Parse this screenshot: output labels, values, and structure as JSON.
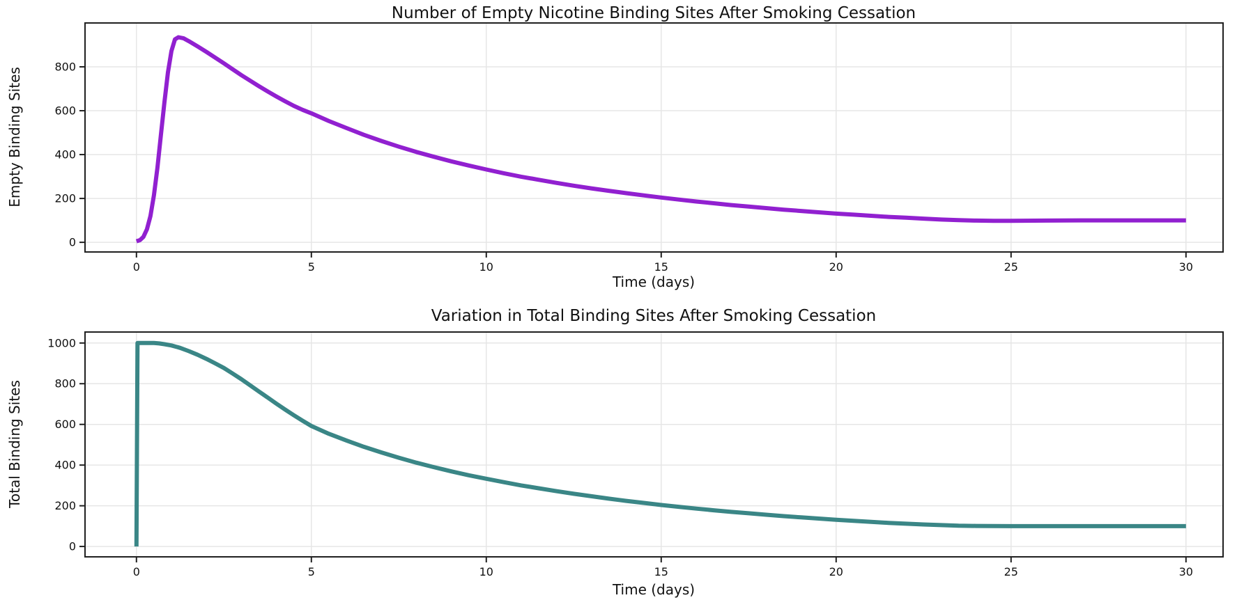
{
  "figure": {
    "background": "#ffffff",
    "grid_color": "#e6e6e6",
    "spine_color": "#1f1f1f",
    "text_color": "#111111"
  },
  "chart_data": [
    {
      "type": "line",
      "title": "Number of Empty Nicotine Binding Sites After Smoking Cessation",
      "xlabel": "Time (days)",
      "ylabel": "Empty Binding Sites",
      "xlim": [
        -1.47,
        31.06
      ],
      "ylim": [
        -44,
        1000
      ],
      "xticks": [
        0,
        5,
        10,
        15,
        20,
        25,
        30
      ],
      "yticks": [
        0,
        200,
        400,
        600,
        800
      ],
      "grid": true,
      "legend": "none",
      "line_color": "#9120d0",
      "line_width": 6,
      "series": [
        {
          "name": "Empty Binding Sites",
          "points": [
            [
              0,
              5
            ],
            [
              0.1,
              10
            ],
            [
              0.2,
              25
            ],
            [
              0.3,
              60
            ],
            [
              0.4,
              120
            ],
            [
              0.5,
              215
            ],
            [
              0.6,
              340
            ],
            [
              0.7,
              490
            ],
            [
              0.8,
              640
            ],
            [
              0.9,
              775
            ],
            [
              1.0,
              872
            ],
            [
              1.1,
              925
            ],
            [
              1.2,
              935
            ],
            [
              1.35,
              930
            ],
            [
              1.5,
              917
            ],
            [
              1.75,
              893
            ],
            [
              2,
              868
            ],
            [
              2.25,
              842
            ],
            [
              2.5,
              816
            ],
            [
              2.75,
              789
            ],
            [
              3,
              762
            ],
            [
              3.25,
              737
            ],
            [
              3.5,
              712
            ],
            [
              3.75,
              688
            ],
            [
              4,
              665
            ],
            [
              4.25,
              643
            ],
            [
              4.5,
              622
            ],
            [
              4.75,
              604
            ],
            [
              5,
              588
            ],
            [
              5.5,
              553
            ],
            [
              6,
              521
            ],
            [
              6.5,
              490
            ],
            [
              7,
              462
            ],
            [
              7.5,
              436
            ],
            [
              8,
              412
            ],
            [
              8.5,
              390
            ],
            [
              9,
              369
            ],
            [
              9.5,
              350
            ],
            [
              10,
              332
            ],
            [
              10.5,
              315
            ],
            [
              11,
              299
            ],
            [
              11.5,
              285
            ],
            [
              12,
              271
            ],
            [
              12.5,
              258
            ],
            [
              13,
              246
            ],
            [
              13.5,
              235
            ],
            [
              14,
              224
            ],
            [
              14.5,
              214
            ],
            [
              15,
              204
            ],
            [
              15.5,
              195
            ],
            [
              16,
              186
            ],
            [
              16.5,
              178
            ],
            [
              17,
              170
            ],
            [
              17.5,
              163
            ],
            [
              18,
              156
            ],
            [
              18.5,
              149
            ],
            [
              19,
              143
            ],
            [
              19.5,
              137
            ],
            [
              20,
              131
            ],
            [
              20.5,
              126
            ],
            [
              21,
              121
            ],
            [
              21.5,
              116
            ],
            [
              22,
              112
            ],
            [
              22.5,
              108
            ],
            [
              23,
              104
            ],
            [
              23.5,
              101
            ],
            [
              24,
              99
            ],
            [
              24.5,
              98
            ],
            [
              25,
              98
            ],
            [
              26,
              99
            ],
            [
              27,
              100
            ],
            [
              28,
              100
            ],
            [
              29,
              100
            ],
            [
              30,
              100
            ]
          ]
        }
      ]
    },
    {
      "type": "line",
      "title": "Variation in Total Binding Sites After Smoking Cessation",
      "xlabel": "Time (days)",
      "ylabel": "Total Binding Sites",
      "xlim": [
        -1.47,
        31.06
      ],
      "ylim": [
        -51,
        1054
      ],
      "xticks": [
        0,
        5,
        10,
        15,
        20,
        25,
        30
      ],
      "yticks": [
        0,
        200,
        400,
        600,
        800,
        1000
      ],
      "grid": true,
      "legend": "none",
      "line_color": "#3a8686",
      "line_width": 6,
      "series": [
        {
          "name": "Total Binding Sites",
          "points": [
            [
              0,
              0
            ],
            [
              0.03,
              1000
            ],
            [
              0.3,
              1000
            ],
            [
              0.5,
              1000
            ],
            [
              0.65,
              998
            ],
            [
              0.8,
              994
            ],
            [
              1,
              988
            ],
            [
              1.25,
              976
            ],
            [
              1.5,
              960
            ],
            [
              1.75,
              942
            ],
            [
              2,
              922
            ],
            [
              2.25,
              900
            ],
            [
              2.5,
              877
            ],
            [
              2.75,
              850
            ],
            [
              3,
              822
            ],
            [
              3.25,
              792
            ],
            [
              3.5,
              762
            ],
            [
              3.75,
              732
            ],
            [
              4,
              702
            ],
            [
              4.25,
              673
            ],
            [
              4.5,
              645
            ],
            [
              4.75,
              618
            ],
            [
              5,
              592
            ],
            [
              5.5,
              554
            ],
            [
              6,
              521
            ],
            [
              6.5,
              490
            ],
            [
              7,
              462
            ],
            [
              7.5,
              436
            ],
            [
              8,
              412
            ],
            [
              8.5,
              390
            ],
            [
              9,
              369
            ],
            [
              9.5,
              350
            ],
            [
              10,
              333
            ],
            [
              10.5,
              316
            ],
            [
              11,
              300
            ],
            [
              11.5,
              286
            ],
            [
              12,
              272
            ],
            [
              12.5,
              259
            ],
            [
              13,
              247
            ],
            [
              13.5,
              235
            ],
            [
              14,
              224
            ],
            [
              14.5,
              214
            ],
            [
              15,
              204
            ],
            [
              15.5,
              195
            ],
            [
              16,
              186
            ],
            [
              16.5,
              178
            ],
            [
              17,
              170
            ],
            [
              17.5,
              163
            ],
            [
              18,
              156
            ],
            [
              18.5,
              149
            ],
            [
              19,
              143
            ],
            [
              19.5,
              137
            ],
            [
              20,
              131
            ],
            [
              20.5,
              126
            ],
            [
              21,
              121
            ],
            [
              21.5,
              116
            ],
            [
              22,
              112
            ],
            [
              22.5,
              108
            ],
            [
              23,
              105
            ],
            [
              23.5,
              102
            ],
            [
              24,
              101
            ],
            [
              25,
              100
            ],
            [
              26,
              100
            ],
            [
              27,
              100
            ],
            [
              28,
              100
            ],
            [
              29,
              100
            ],
            [
              30,
              100
            ]
          ]
        }
      ]
    }
  ]
}
